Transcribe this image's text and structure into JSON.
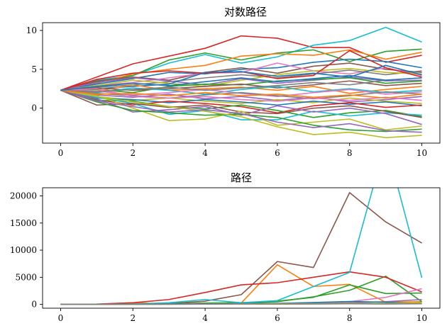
{
  "chart_data": [
    {
      "type": "line",
      "title": "对数路径",
      "xlabel": "",
      "ylabel": "",
      "xlim": [
        -0.5,
        10.5
      ],
      "ylim": [
        -4.5,
        11.0
      ],
      "x_ticks": [
        0,
        2,
        4,
        6,
        8,
        10
      ],
      "y_ticks": [
        0,
        5,
        10
      ],
      "grid": false,
      "x": [
        0,
        1,
        2,
        3,
        4,
        5,
        6,
        7,
        8,
        9,
        10
      ],
      "series": [
        {
          "color": "#d62728",
          "values": [
            2.3,
            4.0,
            5.7,
            6.7,
            7.7,
            9.3,
            9.0,
            7.8,
            7.8,
            5.9,
            6.8
          ]
        },
        {
          "color": "#17becf",
          "values": [
            2.3,
            3.6,
            4.2,
            5.8,
            6.9,
            5.8,
            6.6,
            8.1,
            8.7,
            10.4,
            8.5
          ]
        },
        {
          "color": "#2ca02c",
          "values": [
            2.3,
            3.4,
            4.2,
            6.2,
            7.1,
            6.2,
            7.1,
            7.5,
            6.0,
            7.3,
            7.6
          ]
        },
        {
          "color": "#ff7f0e",
          "values": [
            2.3,
            3.2,
            4.4,
            5.0,
            5.5,
            6.7,
            7.0,
            6.8,
            7.5,
            6.3,
            7.2
          ]
        },
        {
          "color": "#1f77b4",
          "values": [
            2.3,
            3.1,
            3.8,
            4.6,
            4.4,
            5.0,
            5.2,
            5.9,
            6.3,
            6.0,
            5.2
          ]
        },
        {
          "color": "#8c564b",
          "values": [
            2.3,
            3.5,
            4.0,
            3.6,
            4.6,
            5.2,
            4.5,
            5.4,
            5.8,
            5.0,
            4.6
          ]
        },
        {
          "color": "#e377c2",
          "values": [
            2.3,
            2.9,
            3.3,
            3.9,
            4.5,
            4.6,
            5.8,
            4.8,
            4.4,
            5.2,
            4.2
          ]
        },
        {
          "color": "#7f7f7f",
          "values": [
            2.3,
            2.7,
            3.0,
            3.4,
            3.9,
            4.3,
            3.9,
            4.4,
            4.9,
            4.3,
            4.8
          ]
        },
        {
          "color": "#bcbd22",
          "values": [
            2.3,
            2.9,
            3.6,
            3.2,
            2.8,
            3.6,
            4.3,
            4.8,
            5.1,
            4.6,
            4.4
          ]
        },
        {
          "color": "#9467bd",
          "values": [
            2.3,
            3.3,
            3.9,
            3.5,
            3.0,
            3.8,
            3.2,
            3.6,
            4.0,
            3.5,
            3.6
          ]
        },
        {
          "color": "#d62728",
          "values": [
            2.3,
            3.7,
            4.5,
            4.8,
            4.5,
            4.7,
            3.8,
            4.2,
            7.4,
            5.2,
            4.0
          ]
        },
        {
          "color": "#1f77b4",
          "values": [
            2.3,
            2.5,
            2.8,
            3.1,
            4.6,
            4.7,
            4.1,
            4.5,
            4.0,
            5.5,
            4.3
          ]
        },
        {
          "color": "#2ca02c",
          "values": [
            2.3,
            2.4,
            2.0,
            2.8,
            3.1,
            3.0,
            3.5,
            3.7,
            3.9,
            3.2,
            3.5
          ]
        },
        {
          "color": "#ff7f0e",
          "values": [
            2.3,
            2.2,
            3.0,
            2.3,
            2.5,
            2.7,
            2.3,
            2.8,
            1.9,
            2.4,
            2.8
          ]
        },
        {
          "color": "#8c564b",
          "values": [
            2.3,
            2.6,
            2.3,
            2.5,
            2.8,
            3.1,
            2.6,
            3.0,
            3.5,
            2.9,
            3.2
          ]
        },
        {
          "color": "#17becf",
          "values": [
            2.3,
            2.0,
            2.6,
            2.3,
            1.8,
            2.4,
            2.8,
            2.1,
            2.5,
            2.0,
            2.3
          ]
        },
        {
          "color": "#e377c2",
          "values": [
            2.3,
            2.2,
            1.7,
            2.0,
            2.4,
            1.9,
            1.5,
            2.0,
            2.4,
            1.8,
            2.1
          ]
        },
        {
          "color": "#7f7f7f",
          "values": [
            2.3,
            1.9,
            1.6,
            1.3,
            1.7,
            2.0,
            1.6,
            1.2,
            1.6,
            2.1,
            1.8
          ]
        },
        {
          "color": "#9467bd",
          "values": [
            2.3,
            1.7,
            1.4,
            1.8,
            1.2,
            1.5,
            1.0,
            1.4,
            0.8,
            1.1,
            1.5
          ]
        },
        {
          "color": "#bcbd22",
          "values": [
            2.3,
            1.5,
            1.0,
            1.3,
            0.9,
            0.6,
            1.1,
            0.7,
            1.3,
            0.9,
            0.6
          ]
        },
        {
          "color": "#1f77b4",
          "values": [
            2.3,
            1.3,
            1.1,
            0.7,
            1.1,
            0.8,
            0.4,
            0.9,
            0.5,
            0.8,
            0.3
          ]
        },
        {
          "color": "#d62728",
          "values": [
            2.3,
            1.1,
            0.4,
            0.9,
            0.6,
            0.2,
            -0.6,
            0.3,
            0.7,
            0.1,
            0.4
          ]
        },
        {
          "color": "#2ca02c",
          "values": [
            2.3,
            1.0,
            0.9,
            0.2,
            -0.1,
            0.4,
            -0.3,
            -1.2,
            -0.6,
            -0.3,
            -1.1
          ]
        },
        {
          "color": "#17becf",
          "values": [
            2.3,
            1.4,
            0.6,
            -0.8,
            -0.3,
            -1.5,
            -1.5,
            -0.4,
            -1.0,
            -0.6,
            -0.9
          ]
        },
        {
          "color": "#8c564b",
          "values": [
            2.3,
            0.4,
            0.6,
            0.1,
            0.4,
            -0.5,
            -0.7,
            0.0,
            0.3,
            -0.4,
            -1.2
          ]
        },
        {
          "color": "#9467bd",
          "values": [
            2.3,
            1.2,
            -0.5,
            -0.2,
            0.2,
            -0.9,
            0.3,
            -0.5,
            0.0,
            -0.7,
            -2.1
          ]
        },
        {
          "color": "#bcbd22",
          "values": [
            2.3,
            1.6,
            0.0,
            -1.6,
            -1.4,
            -0.4,
            -2.2,
            -1.8,
            -1.4,
            -2.8,
            -2.3
          ]
        },
        {
          "color": "#2ca02c",
          "values": [
            2.3,
            0.8,
            -0.3,
            -0.6,
            -0.9,
            -0.8,
            -1.2,
            -2.2,
            -2.8,
            -3.0,
            -2.7
          ]
        },
        {
          "color": "#bcbd22",
          "values": [
            2.3,
            1.5,
            0.8,
            0.2,
            -0.4,
            -1.1,
            -2.4,
            -3.4,
            -3.1,
            -3.8,
            -3.5
          ]
        },
        {
          "color": "#9467bd",
          "values": [
            2.3,
            0.9,
            0.2,
            -0.5,
            -0.2,
            -0.7,
            -1.8,
            -2.5,
            -2.0,
            -2.9,
            -3.1
          ]
        },
        {
          "color": "#e377c2",
          "values": [
            2.3,
            2.5,
            1.5,
            1.3,
            1.5,
            1.1,
            0.9,
            1.3,
            1.0,
            1.4,
            1.0
          ]
        },
        {
          "color": "#7f7f7f",
          "values": [
            2.3,
            2.1,
            2.4,
            2.7,
            2.3,
            2.6,
            2.9,
            3.3,
            3.0,
            3.6,
            3.9
          ]
        },
        {
          "color": "#ff7f0e",
          "values": [
            2.3,
            1.8,
            1.9,
            1.6,
            2.0,
            1.6,
            1.8,
            1.4,
            1.7,
            1.3,
            1.8
          ]
        },
        {
          "color": "#1f77b4",
          "values": [
            2.3,
            2.8,
            3.2,
            2.9,
            3.4,
            3.9,
            3.4,
            3.8,
            4.2,
            3.6,
            3.9
          ]
        }
      ]
    },
    {
      "type": "line",
      "title": "路径",
      "xlabel": "",
      "ylabel": "",
      "xlim": [
        -0.5,
        10.5
      ],
      "ylim": [
        -700,
        21500
      ],
      "x_ticks": [
        0,
        2,
        4,
        6,
        8,
        10
      ],
      "y_ticks": [
        0,
        5000,
        10000,
        15000,
        20000
      ],
      "grid": false,
      "x": [
        0,
        1,
        2,
        3,
        4,
        5,
        6,
        7,
        8,
        9,
        10
      ],
      "series": [
        {
          "color": "#8c564b",
          "values": [
            10,
            40,
            60,
            150,
            600,
            1800,
            7900,
            6800,
            20600,
            15200,
            11300
          ]
        },
        {
          "color": "#ff7f0e",
          "values": [
            10,
            20,
            300,
            100,
            200,
            250,
            7300,
            3300,
            3700,
            400,
            500
          ]
        },
        {
          "color": "#2ca02c",
          "values": [
            10,
            50,
            70,
            120,
            200,
            250,
            500,
            1400,
            2600,
            5200,
            500
          ]
        },
        {
          "color": "#2ca02c",
          "values": [
            10,
            30,
            60,
            100,
            250,
            300,
            600,
            1300,
            3600,
            2000,
            2100
          ]
        },
        {
          "color": "#d62728",
          "values": [
            10,
            55,
            300,
            900,
            2200,
            3600,
            4000,
            5000,
            6000,
            5000,
            2300
          ]
        },
        {
          "color": "#e377c2",
          "values": [
            10,
            20,
            40,
            60,
            100,
            150,
            200,
            300,
            500,
            1300,
            2900
          ]
        },
        {
          "color": "#9467bd",
          "values": [
            10,
            15,
            30,
            50,
            80,
            120,
            160,
            200,
            300,
            500,
            900
          ]
        },
        {
          "color": "#17becf",
          "values": [
            10,
            30,
            70,
            300,
            900,
            300,
            700,
            3300,
            5900,
            30000,
            4900
          ]
        },
        {
          "color": "#1f77b4",
          "values": [
            10,
            20,
            40,
            90,
            80,
            150,
            180,
            360,
            540,
            400,
            180
          ]
        },
        {
          "color": "#bcbd22",
          "values": [
            10,
            15,
            25,
            40,
            60,
            90,
            130,
            150,
            200,
            170,
            300
          ]
        },
        {
          "color": "#7f7f7f",
          "values": [
            10,
            15,
            20,
            30,
            50,
            70,
            50,
            80,
            130,
            75,
            120
          ]
        }
      ]
    }
  ]
}
